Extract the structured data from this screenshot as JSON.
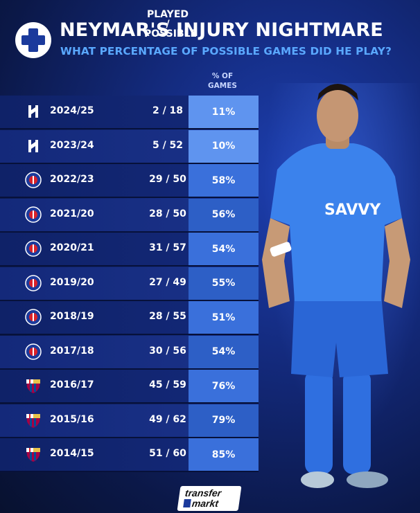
{
  "header": {
    "title": "NEYMAR'S INJURY NIGHTMARE",
    "subtitle": "WHAT PERCENTAGE OF POSSIBLE GAMES DID HE PLAY?",
    "icon": "medical-cross-icon"
  },
  "columns": {
    "played_line1": "PLAYED /",
    "played_line2": "POSSIBLE",
    "pct_line1": "% OF",
    "pct_line2": "GAMES"
  },
  "rows": [
    {
      "club": "al-hilal",
      "season": "2024/25",
      "played": "2 / 18",
      "pct": "11%"
    },
    {
      "club": "al-hilal",
      "season": "2023/24",
      "played": "5 / 52",
      "pct": "10%"
    },
    {
      "club": "psg",
      "season": "2022/23",
      "played": "29 / 50",
      "pct": "58%"
    },
    {
      "club": "psg",
      "season": "2021/20",
      "played": "28 / 50",
      "pct": "56%"
    },
    {
      "club": "psg",
      "season": "2020/21",
      "played": "31 / 57",
      "pct": "54%"
    },
    {
      "club": "psg",
      "season": "2019/20",
      "played": "27 / 49",
      "pct": "55%"
    },
    {
      "club": "psg",
      "season": "2018/19",
      "played": "28 / 55",
      "pct": "51%"
    },
    {
      "club": "psg",
      "season": "2017/18",
      "played": "30 / 56",
      "pct": "54%"
    },
    {
      "club": "barcelona",
      "season": "2016/17",
      "played": "45 / 59",
      "pct": "76%"
    },
    {
      "club": "barcelona",
      "season": "2015/16",
      "played": "49 / 62",
      "pct": "79%"
    },
    {
      "club": "barcelona",
      "season": "2014/15",
      "played": "51 / 60",
      "pct": "85%"
    }
  ],
  "colors": {
    "pct_high": "#3e78e0",
    "accent_subtitle": "#5aa8ff",
    "background": "#13297a"
  },
  "logo": {
    "line1": "transfer",
    "line2": "markt"
  }
}
